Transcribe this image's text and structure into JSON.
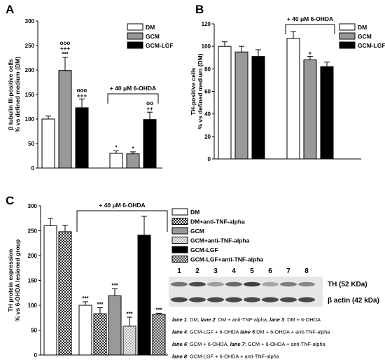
{
  "chart_data": [
    {
      "panel": "A",
      "type": "bar",
      "ylabel_lines": [
        "β tubulin III-positive cells",
        "% vs defined medium (DM)"
      ],
      "ylim": [
        0,
        300
      ],
      "yticks": [
        0,
        50,
        100,
        150,
        200,
        250,
        300
      ],
      "legend": [
        {
          "name": "DM",
          "color": "#ffffff"
        },
        {
          "name": "GCM",
          "color": "#999999"
        },
        {
          "name": "GCM-LGF",
          "color": "#000000"
        }
      ],
      "bracket_label": "+ 40 μM 6-OHDA",
      "bars": [
        {
          "series": "DM",
          "value": 100,
          "err": 6,
          "group": 0,
          "labels": []
        },
        {
          "series": "GCM",
          "value": 199,
          "err": 27,
          "group": 0,
          "labels": [
            "ooo",
            "+++",
            "***"
          ]
        },
        {
          "series": "GCM-LGF",
          "value": 123,
          "err": 18,
          "group": 0,
          "labels": [
            "ooo",
            "+++"
          ]
        },
        {
          "series": "DM",
          "value": 30,
          "err": 5,
          "group": 1,
          "labels": [
            "*"
          ]
        },
        {
          "series": "GCM",
          "value": 29,
          "err": 4,
          "group": 1,
          "labels": [
            "*"
          ]
        },
        {
          "series": "GCM-LGF",
          "value": 99,
          "err": 15,
          "group": 1,
          "labels": [
            "oo",
            "++"
          ]
        }
      ]
    },
    {
      "panel": "B",
      "type": "bar",
      "ylabel_lines": [
        "TH-positive cells",
        "% vs defined medium (DM)"
      ],
      "ylim": [
        0,
        120
      ],
      "yticks": [
        0,
        20,
        40,
        60,
        80,
        100,
        120
      ],
      "legend": [
        {
          "name": "DM",
          "color": "#ffffff"
        },
        {
          "name": "GCM",
          "color": "#999999"
        },
        {
          "name": "GCM-LGF",
          "color": "#000000"
        }
      ],
      "bracket_label": "+ 40 μM 6-OHDA",
      "bars": [
        {
          "series": "DM",
          "value": 100,
          "err": 4,
          "group": 0,
          "labels": []
        },
        {
          "series": "GCM",
          "value": 95,
          "err": 5,
          "group": 0,
          "labels": []
        },
        {
          "series": "GCM-LGF",
          "value": 91,
          "err": 6,
          "group": 0,
          "labels": []
        },
        {
          "series": "DM",
          "value": 107,
          "err": 6,
          "group": 1,
          "labels": []
        },
        {
          "series": "GCM",
          "value": 88,
          "err": 3,
          "group": 1,
          "labels": [
            "+"
          ]
        },
        {
          "series": "GCM-LGF",
          "value": 82,
          "err": 4,
          "group": 1,
          "labels": []
        }
      ]
    },
    {
      "panel": "C",
      "type": "bar",
      "ylabel_lines": [
        "TH protein expression",
        "% vs 6-OHDA lesioned group"
      ],
      "ylim": [
        0,
        300
      ],
      "yticks": [
        0,
        50,
        100,
        150,
        200,
        250,
        300
      ],
      "legend": [
        {
          "name": "DM",
          "pattern": "white"
        },
        {
          "name": "DM+anti-TNF-alpha",
          "pattern": "checker-dark"
        },
        {
          "name": "GCM",
          "pattern": "gray"
        },
        {
          "name": "GCM+anti-TNF-alpha",
          "pattern": "checker-light"
        },
        {
          "name": "GCM-LGF",
          "pattern": "black"
        },
        {
          "name": "GCM-LGF+anti-TNF-alpha",
          "pattern": "checker-mid"
        }
      ],
      "bracket_label": "+ 40 μM 6-OHDA",
      "bars": [
        {
          "series": "DM",
          "value": 260,
          "err": 15,
          "group": 0,
          "labels": []
        },
        {
          "series": "DM+anti-TNF-alpha",
          "value": 248,
          "err": 13,
          "group": 0,
          "labels": []
        },
        {
          "series": "DM",
          "value": 100,
          "err": 7,
          "group": 1,
          "labels": [
            "***"
          ]
        },
        {
          "series": "DM+anti-TNF-alpha",
          "value": 83,
          "err": 12,
          "group": 1,
          "labels": [
            "***"
          ]
        },
        {
          "series": "GCM",
          "value": 119,
          "err": 14,
          "group": 1,
          "labels": [
            "***"
          ]
        },
        {
          "series": "GCM+anti-TNF-alpha",
          "value": 58,
          "err": 18,
          "group": 1,
          "labels": [
            "***"
          ]
        },
        {
          "series": "GCM-LGF",
          "value": 241,
          "err": 38,
          "group": 1,
          "labels": []
        },
        {
          "series": "GCM-LGF+anti-TNF-alpha",
          "value": 82,
          "err": 2,
          "group": 1,
          "labels": [
            "***"
          ]
        }
      ]
    }
  ],
  "blot": {
    "lane_numbers": [
      "1",
      "2",
      "3",
      "4",
      "5",
      "6",
      "7",
      "8"
    ],
    "band_labels": [
      "TH (52 KDa)",
      "β actin (42 kDa)"
    ]
  },
  "caption": [
    [
      {
        "t": "lane 1",
        "b": true
      },
      {
        "t": ": DM, ",
        "b": false
      },
      {
        "t": "lane 2",
        "b": true
      },
      {
        "t": ": DM + anti-TNF-alpha, ",
        "b": false
      },
      {
        "t": "lane 3",
        "b": true
      },
      {
        "t": ": DM + 6-OHDA",
        "b": false
      }
    ],
    [
      {
        "t": "lane 4",
        "b": true
      },
      {
        "t": ": GCM-LGF + 6-OHDA  ",
        "b": false
      },
      {
        "t": "lane 5",
        "b": true
      },
      {
        "t": ":DM + 6-OHDA + anti-TNF-alpha",
        "b": false
      }
    ],
    [
      {
        "t": "lane 6",
        "b": true
      },
      {
        "t": ": GCM + 6-OHDA, ",
        "b": false
      },
      {
        "t": "lane 7",
        "b": true
      },
      {
        "t": ": GCM + 6-OHDA + anti-TNF-alpha",
        "b": false
      }
    ],
    [
      {
        "t": "lane 8",
        "b": true
      },
      {
        "t": ": GCM-LGF + 6-OHDA + anti-TNF-alpha",
        "b": false
      }
    ]
  ]
}
